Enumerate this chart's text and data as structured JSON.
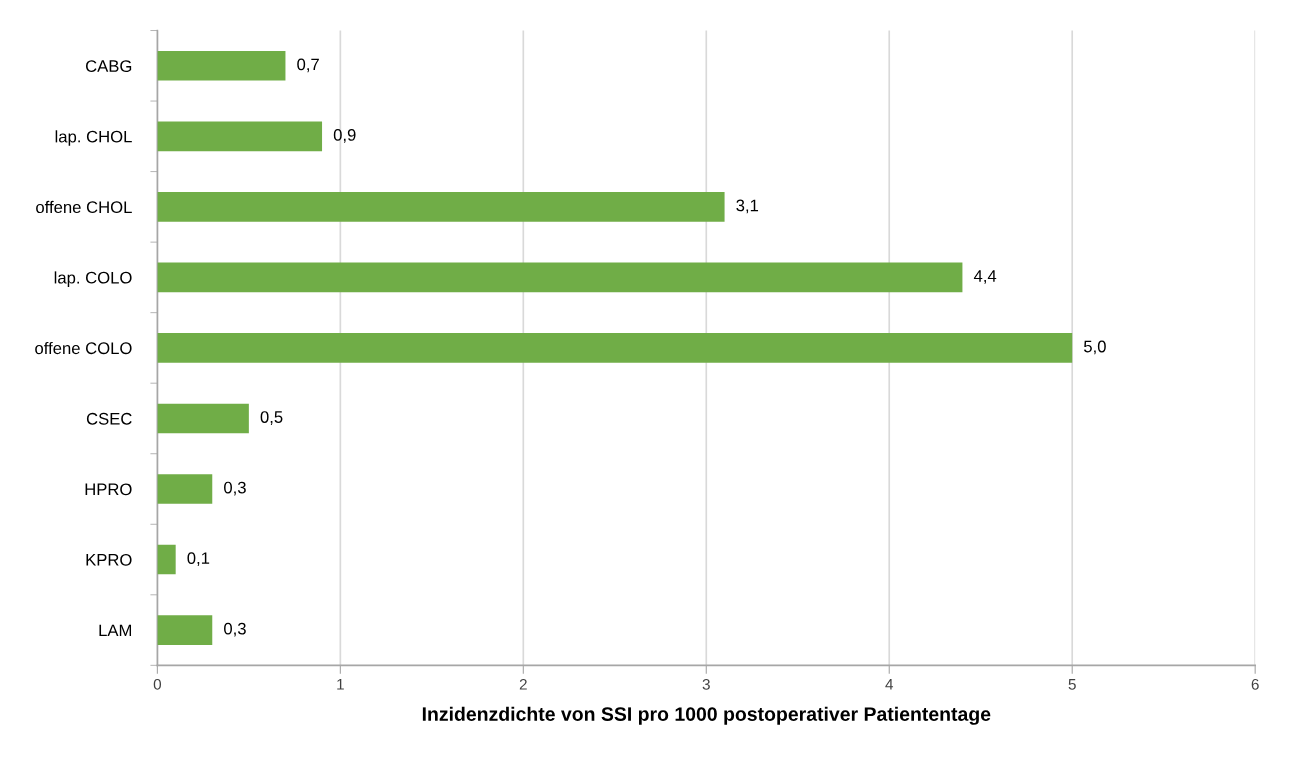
{
  "chart_data": {
    "type": "bar",
    "orientation": "horizontal",
    "categories": [
      "CABG",
      "lap. CHOL",
      "offene CHOL",
      "lap. COLO",
      "offene COLO",
      "CSEC",
      "HPRO",
      "KPRO",
      "LAM"
    ],
    "values": [
      0.7,
      0.9,
      3.1,
      4.4,
      5.0,
      0.5,
      0.3,
      0.1,
      0.3
    ],
    "value_labels": [
      "0,7",
      "0,9",
      "3,1",
      "4,4",
      "5,0",
      "0,5",
      "0,3",
      "0,1",
      "0,3"
    ],
    "color": "#70ad47",
    "xlabel": "Inzidenzdichte von SSI pro 1000 postoperativer Patiententage",
    "xlim": [
      0,
      6
    ],
    "xticks": [
      0,
      1,
      2,
      3,
      4,
      5,
      6
    ],
    "grid": "x",
    "legend": false
  }
}
